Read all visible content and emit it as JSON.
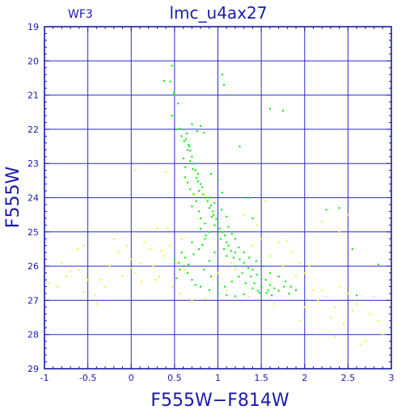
{
  "header": {
    "chip": "WF3",
    "title": "lmc_u4ax27"
  },
  "chart_data": {
    "type": "scatter",
    "title": "lmc_u4ax27",
    "subtitle": "WF3",
    "xlabel": "F555W−F814W",
    "ylabel": "F555W",
    "xlim": [
      -1,
      3
    ],
    "ylim": [
      29,
      19
    ],
    "y_inverted": true,
    "grid": true,
    "x_ticks": [
      -1,
      -0.5,
      0,
      0.5,
      1,
      1.5,
      2,
      2.5,
      3
    ],
    "x_tick_labels": [
      "-1",
      "-0.5",
      "0",
      "0.5",
      "1",
      "1.5",
      "2",
      "2.5",
      "3"
    ],
    "y_ticks": [
      19,
      20,
      21,
      22,
      23,
      24,
      25,
      26,
      27,
      28,
      29
    ],
    "y_tick_labels": [
      "19",
      "20",
      "21",
      "22",
      "23",
      "24",
      "25",
      "26",
      "27",
      "28",
      "29"
    ],
    "colors": {
      "axis": "#1a1aa6",
      "grid": "#2b2bd0",
      "green": "#22e622",
      "yellow": "#f2f23a"
    },
    "series": [
      {
        "color": "green",
        "points": [
          [
            0.38,
            20.58
          ],
          [
            0.45,
            20.6
          ],
          [
            0.47,
            20.14
          ],
          [
            0.49,
            20.95
          ],
          [
            0.5,
            21.0
          ],
          [
            0.54,
            21.24
          ],
          [
            0.47,
            21.6
          ],
          [
            0.52,
            22.0
          ],
          [
            0.56,
            21.98
          ],
          [
            0.6,
            22.0
          ],
          [
            0.64,
            22.12
          ],
          [
            0.63,
            22.29
          ],
          [
            0.66,
            22.45
          ],
          [
            0.67,
            22.5
          ],
          [
            0.68,
            22.62
          ],
          [
            0.7,
            22.8
          ],
          [
            0.68,
            22.93
          ],
          [
            0.72,
            23.0
          ],
          [
            0.71,
            23.16
          ],
          [
            0.74,
            23.2
          ],
          [
            0.77,
            23.3
          ],
          [
            0.75,
            23.42
          ],
          [
            0.77,
            23.52
          ],
          [
            0.8,
            23.6
          ],
          [
            0.82,
            23.69
          ],
          [
            0.78,
            23.8
          ],
          [
            0.83,
            23.9
          ],
          [
            0.86,
            24.0
          ],
          [
            0.9,
            24.0
          ],
          [
            0.88,
            24.1
          ],
          [
            0.92,
            24.23
          ],
          [
            0.9,
            24.3
          ],
          [
            0.94,
            24.4
          ],
          [
            0.95,
            24.5
          ],
          [
            0.93,
            24.55
          ],
          [
            0.98,
            24.62
          ],
          [
            1.0,
            24.7
          ],
          [
            0.96,
            24.8
          ],
          [
            1.02,
            24.9
          ],
          [
            1.05,
            25.0
          ],
          [
            1.0,
            25.05
          ],
          [
            1.08,
            25.1
          ],
          [
            1.03,
            25.2
          ],
          [
            1.1,
            25.3
          ],
          [
            1.12,
            25.4
          ],
          [
            1.07,
            25.5
          ],
          [
            1.15,
            25.55
          ],
          [
            1.2,
            25.6
          ],
          [
            1.1,
            25.7
          ],
          [
            1.18,
            25.75
          ],
          [
            1.25,
            25.8
          ],
          [
            1.3,
            25.9
          ],
          [
            1.2,
            26.0
          ],
          [
            1.35,
            26.05
          ],
          [
            1.4,
            26.1
          ],
          [
            1.28,
            26.2
          ],
          [
            1.45,
            26.25
          ],
          [
            1.38,
            26.3
          ],
          [
            1.5,
            26.35
          ],
          [
            1.55,
            26.4
          ],
          [
            1.42,
            26.5
          ],
          [
            1.6,
            26.55
          ],
          [
            1.5,
            26.6
          ],
          [
            1.65,
            26.65
          ],
          [
            1.58,
            26.7
          ],
          [
            1.7,
            26.72
          ],
          [
            1.48,
            26.78
          ],
          [
            1.3,
            26.82
          ],
          [
            1.2,
            26.88
          ],
          [
            1.1,
            26.85
          ],
          [
            1.0,
            26.8
          ],
          [
            0.9,
            26.7
          ],
          [
            0.8,
            26.6
          ],
          [
            0.74,
            26.55
          ],
          [
            0.7,
            26.4
          ],
          [
            0.65,
            26.2
          ],
          [
            0.6,
            26.0
          ],
          [
            0.55,
            25.9
          ],
          [
            0.5,
            25.8
          ],
          [
            0.62,
            25.75
          ],
          [
            0.72,
            25.65
          ],
          [
            0.78,
            25.5
          ],
          [
            0.82,
            25.38
          ],
          [
            0.7,
            25.3
          ],
          [
            0.85,
            25.2
          ],
          [
            0.86,
            25.1
          ],
          [
            0.9,
            25.0
          ],
          [
            0.8,
            24.9
          ],
          [
            0.85,
            24.75
          ],
          [
            0.8,
            24.6
          ],
          [
            0.78,
            24.4
          ],
          [
            0.7,
            24.25
          ],
          [
            0.75,
            24.1
          ],
          [
            0.72,
            23.9
          ],
          [
            0.68,
            23.75
          ],
          [
            0.65,
            23.55
          ],
          [
            0.62,
            23.4
          ],
          [
            0.62,
            23.1
          ],
          [
            0.6,
            22.85
          ],
          [
            0.65,
            22.6
          ],
          [
            0.61,
            22.35
          ],
          [
            0.58,
            22.2
          ],
          [
            1.05,
            20.4
          ],
          [
            1.07,
            20.7
          ],
          [
            1.15,
            21.0
          ],
          [
            1.25,
            22.5
          ],
          [
            1.35,
            24.0
          ],
          [
            1.4,
            24.6
          ],
          [
            1.6,
            21.4
          ],
          [
            1.75,
            21.45
          ],
          [
            2.25,
            24.35
          ],
          [
            2.4,
            24.3
          ],
          [
            2.55,
            25.5
          ],
          [
            2.6,
            26.85
          ],
          [
            2.85,
            25.95
          ],
          [
            0.8,
            21.9
          ],
          [
            0.7,
            21.85
          ],
          [
            0.76,
            22.05
          ],
          [
            0.84,
            22.1
          ],
          [
            0.92,
            23.3
          ],
          [
            1.0,
            23.5
          ],
          [
            1.05,
            23.85
          ],
          [
            0.96,
            24.15
          ],
          [
            1.04,
            24.35
          ],
          [
            1.1,
            24.55
          ],
          [
            1.12,
            24.85
          ],
          [
            1.16,
            25.05
          ],
          [
            1.2,
            25.2
          ],
          [
            1.24,
            25.45
          ],
          [
            1.3,
            25.6
          ],
          [
            1.36,
            25.75
          ],
          [
            1.44,
            25.85
          ],
          [
            1.52,
            26.0
          ],
          [
            1.6,
            26.2
          ],
          [
            1.7,
            26.3
          ],
          [
            1.78,
            26.45
          ],
          [
            1.84,
            26.6
          ],
          [
            1.9,
            26.7
          ],
          [
            0.96,
            25.6
          ],
          [
            0.9,
            25.85
          ],
          [
            0.84,
            26.1
          ],
          [
            0.92,
            26.3
          ],
          [
            1.0,
            26.5
          ],
          [
            1.08,
            26.6
          ],
          [
            1.16,
            26.45
          ],
          [
            1.24,
            26.3
          ],
          [
            1.32,
            26.5
          ],
          [
            1.4,
            26.65
          ],
          [
            1.46,
            26.72
          ],
          [
            1.56,
            26.78
          ],
          [
            1.62,
            26.85
          ],
          [
            1.76,
            26.6
          ],
          [
            1.82,
            26.8
          ],
          [
            0.58,
            25.6
          ],
          [
            0.66,
            25.95
          ],
          [
            0.56,
            26.1
          ],
          [
            0.52,
            26.35
          ]
        ]
      },
      {
        "color": "yellow",
        "points": [
          [
            -0.95,
            26.5
          ],
          [
            -0.85,
            26.6
          ],
          [
            -0.8,
            25.9
          ],
          [
            -0.75,
            26.3
          ],
          [
            -0.62,
            25.5
          ],
          [
            -0.6,
            26.1
          ],
          [
            -0.55,
            25.4
          ],
          [
            -0.5,
            26.4
          ],
          [
            -0.42,
            26.85
          ],
          [
            -0.35,
            26.4
          ],
          [
            -0.3,
            26.6
          ],
          [
            -0.2,
            25.2
          ],
          [
            -0.15,
            25.6
          ],
          [
            -0.1,
            26.3
          ],
          [
            -0.05,
            25.4
          ],
          [
            0.0,
            25.8
          ],
          [
            0.05,
            26.2
          ],
          [
            0.1,
            25.9
          ],
          [
            0.15,
            25.3
          ],
          [
            0.22,
            25.5
          ],
          [
            0.28,
            26.4
          ],
          [
            0.32,
            26.3
          ],
          [
            0.38,
            25.7
          ],
          [
            0.42,
            24.9
          ],
          [
            0.45,
            25.4
          ],
          [
            0.48,
            26.6
          ],
          [
            0.52,
            25.9
          ],
          [
            0.56,
            26.8
          ],
          [
            0.58,
            25.2
          ],
          [
            0.62,
            26.1
          ],
          [
            0.04,
            23.2
          ],
          [
            0.4,
            23.25
          ],
          [
            -0.4,
            27.1
          ],
          [
            -0.25,
            26.0
          ],
          [
            0.0,
            26.05
          ],
          [
            0.12,
            26.45
          ],
          [
            0.25,
            26.0
          ],
          [
            1.45,
            24.8
          ],
          [
            1.6,
            25.7
          ],
          [
            1.7,
            25.3
          ],
          [
            1.75,
            26.0
          ],
          [
            1.8,
            25.25
          ],
          [
            1.85,
            25.6
          ],
          [
            1.9,
            26.3
          ],
          [
            1.95,
            25.9
          ],
          [
            2.0,
            26.2
          ],
          [
            2.05,
            26.0
          ],
          [
            2.1,
            26.7
          ],
          [
            2.15,
            27.0
          ],
          [
            2.2,
            26.7
          ],
          [
            2.25,
            26.9
          ],
          [
            2.3,
            27.5
          ],
          [
            2.35,
            27.2
          ],
          [
            2.4,
            26.6
          ],
          [
            2.45,
            27.7
          ],
          [
            2.5,
            26.8
          ],
          [
            2.55,
            27.3
          ],
          [
            2.6,
            27.1
          ],
          [
            2.7,
            28.2
          ],
          [
            2.75,
            27.4
          ],
          [
            2.8,
            26.9
          ],
          [
            2.85,
            27.6
          ],
          [
            2.9,
            28.0
          ],
          [
            2.0,
            27.2
          ],
          [
            1.55,
            24.1
          ],
          [
            1.3,
            24.5
          ],
          [
            1.4,
            25.4
          ],
          [
            1.5,
            25.2
          ],
          [
            2.2,
            24.7
          ],
          [
            2.5,
            24.5
          ],
          [
            2.4,
            25.0
          ],
          [
            1.15,
            25.9
          ],
          [
            1.35,
            26.9
          ],
          [
            1.65,
            27.1
          ],
          [
            1.95,
            27.6
          ],
          [
            2.35,
            28.05
          ],
          [
            2.65,
            28.3
          ],
          [
            0.7,
            27.0
          ],
          [
            0.85,
            26.95
          ],
          [
            1.0,
            26.2
          ],
          [
            1.2,
            26.1
          ],
          [
            1.1,
            26.7
          ],
          [
            -0.55,
            26.75
          ],
          [
            -0.7,
            26.15
          ],
          [
            0.3,
            24.9
          ],
          [
            0.35,
            25.55
          ]
        ]
      }
    ]
  }
}
